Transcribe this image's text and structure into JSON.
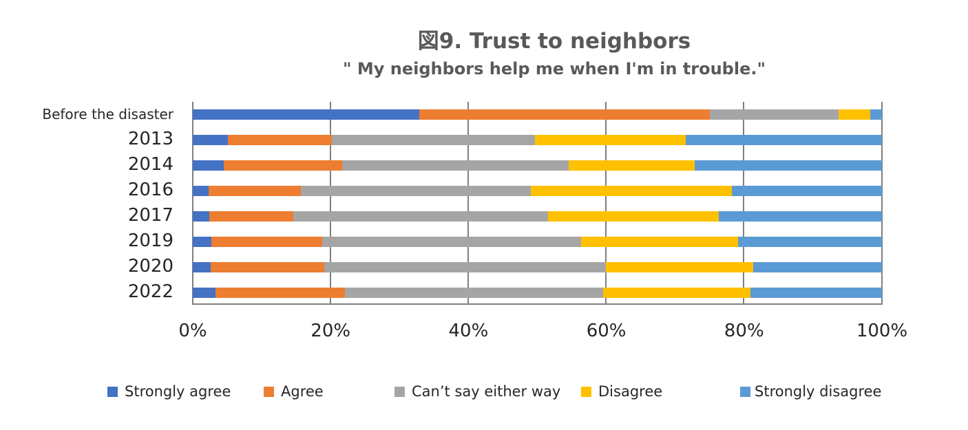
{
  "chart_data": {
    "type": "bar",
    "orientation": "horizontal",
    "stacked": "percent",
    "title": "図9. Trust to neighbors",
    "subtitle": "\" My neighbors help me when I'm in trouble.\"",
    "xlabel": "",
    "ylabel": "",
    "xlim": [
      0,
      100
    ],
    "x_ticks": [
      "0%",
      "20%",
      "40%",
      "60%",
      "80%",
      "100%"
    ],
    "grid": "vertical",
    "legend_position": "bottom",
    "categories": [
      "Before the disaster",
      "2013",
      "2014",
      "2016",
      "2017",
      "2019",
      "2020",
      "2022"
    ],
    "series": [
      {
        "name": "Strongly agree",
        "color": "#4472c4",
        "values": [
          32.9,
          5.1,
          4.5,
          2.3,
          2.4,
          2.7,
          2.6,
          3.3
        ]
      },
      {
        "name": "Agree",
        "color": "#ed7d31",
        "values": [
          42.1,
          15.1,
          17.2,
          13.4,
          12.2,
          16.1,
          16.5,
          18.8
        ]
      },
      {
        "name": "Can’t say either way",
        "color": "#a5a5a5",
        "values": [
          18.7,
          29.5,
          32.8,
          33.4,
          37.0,
          37.5,
          40.8,
          37.4
        ]
      },
      {
        "name": "Disagree",
        "color": "#ffc000",
        "values": [
          4.6,
          21.8,
          18.3,
          29.1,
          24.7,
          22.8,
          21.4,
          21.4
        ]
      },
      {
        "name": "Strongly disagree",
        "color": "#5b9bd5",
        "values": [
          1.7,
          28.5,
          27.2,
          21.8,
          23.7,
          20.9,
          18.7,
          19.1
        ]
      }
    ]
  }
}
